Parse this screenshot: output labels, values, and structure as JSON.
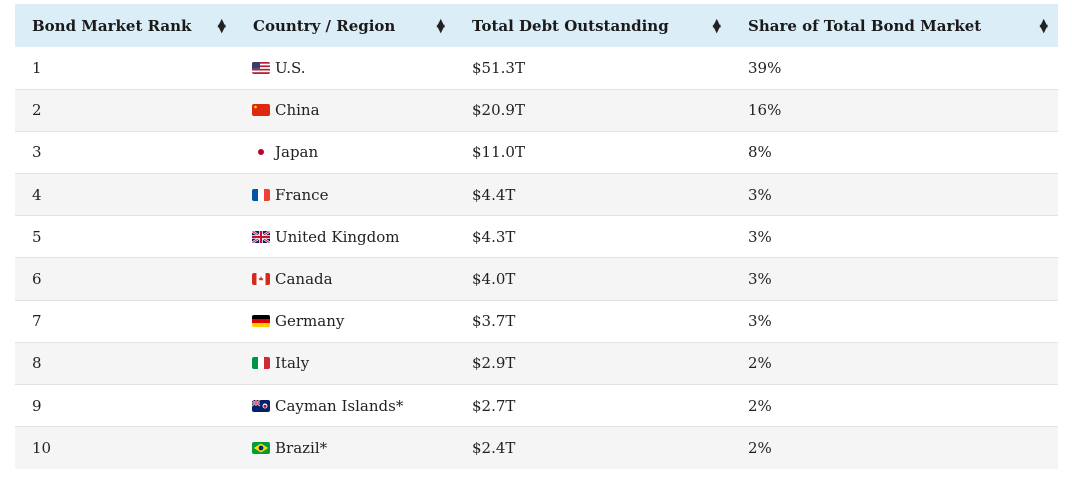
{
  "table": {
    "headers": [
      "Bond Market Rank",
      "Country / Region",
      "Total Debt Outstanding",
      "Share of Total Bond Market"
    ],
    "sort_icon": "sort-icon",
    "rows": [
      {
        "rank": "1",
        "flag": "us-flag-icon",
        "country": "U.S.",
        "debt": "$51.3T",
        "share": "39%"
      },
      {
        "rank": "2",
        "flag": "china-flag-icon",
        "country": "China",
        "debt": "$20.9T",
        "share": "16%"
      },
      {
        "rank": "3",
        "flag": "japan-flag-icon",
        "country": "Japan",
        "debt": "$11.0T",
        "share": "8%"
      },
      {
        "rank": "4",
        "flag": "france-flag-icon",
        "country": "France",
        "debt": "$4.4T",
        "share": "3%"
      },
      {
        "rank": "5",
        "flag": "uk-flag-icon",
        "country": "United Kingdom",
        "debt": "$4.3T",
        "share": "3%"
      },
      {
        "rank": "6",
        "flag": "canada-flag-icon",
        "country": "Canada",
        "debt": "$4.0T",
        "share": "3%"
      },
      {
        "rank": "7",
        "flag": "germany-flag-icon",
        "country": "Germany",
        "debt": "$3.7T",
        "share": "3%"
      },
      {
        "rank": "8",
        "flag": "italy-flag-icon",
        "country": "Italy",
        "debt": "$2.9T",
        "share": "2%"
      },
      {
        "rank": "9",
        "flag": "cayman-islands-flag-icon",
        "country": "Cayman Islands*",
        "debt": "$2.7T",
        "share": "2%"
      },
      {
        "rank": "10",
        "flag": "brazil-flag-icon",
        "country": "Brazil*",
        "debt": "$2.4T",
        "share": "2%"
      }
    ]
  },
  "colors": {
    "header_bg": "#dbeef8",
    "stripe_bg": "#f5f5f5",
    "row_border": "#e3e3e3"
  }
}
